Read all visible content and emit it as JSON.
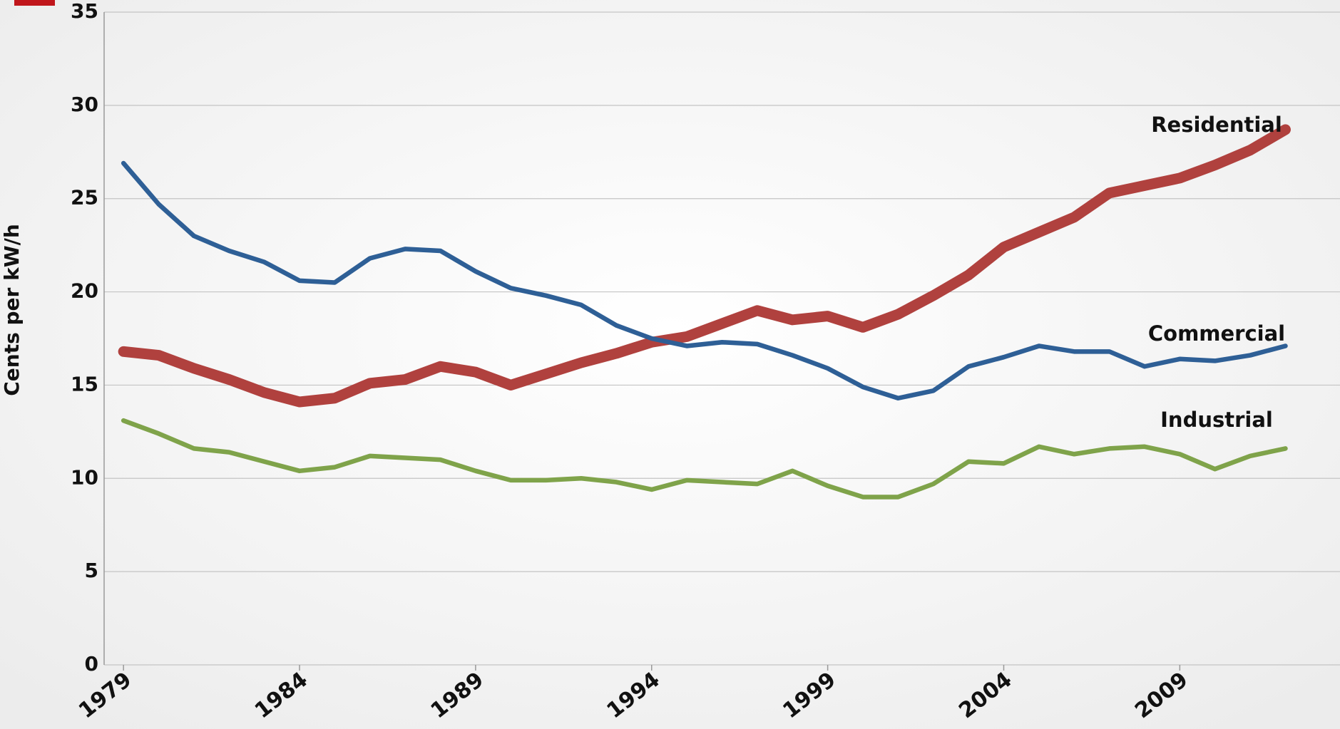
{
  "chart_data": {
    "type": "line",
    "y_label": "Cents per kW/h",
    "x": [
      1979,
      1980,
      1981,
      1982,
      1983,
      1984,
      1985,
      1986,
      1987,
      1988,
      1989,
      1990,
      1991,
      1992,
      1993,
      1994,
      1995,
      1996,
      1997,
      1998,
      1999,
      2000,
      2001,
      2002,
      2003,
      2004,
      2005,
      2006,
      2007,
      2008,
      2009,
      2010,
      2011,
      2012
    ],
    "series": [
      {
        "name": "Residential",
        "color": "#b0413e",
        "values": [
          16.8,
          16.6,
          15.9,
          15.3,
          14.6,
          14.1,
          14.3,
          15.1,
          15.3,
          16.0,
          15.7,
          15.0,
          15.6,
          16.2,
          16.7,
          17.3,
          17.6,
          18.3,
          19.0,
          18.5,
          18.7,
          18.1,
          18.8,
          19.8,
          20.9,
          22.4,
          23.2,
          24.0,
          25.3,
          25.7,
          26.1,
          26.8,
          27.6,
          28.7
        ]
      },
      {
        "name": "Commercial",
        "color": "#2e5f96",
        "values": [
          26.9,
          24.7,
          23.0,
          22.2,
          21.6,
          20.6,
          20.5,
          21.8,
          22.3,
          22.2,
          21.1,
          20.2,
          19.8,
          19.3,
          18.2,
          17.5,
          17.1,
          17.3,
          17.2,
          16.6,
          15.9,
          14.9,
          14.3,
          14.7,
          16.0,
          16.5,
          17.1,
          16.8,
          16.8,
          16.0,
          16.4,
          16.3,
          16.6,
          17.1
        ]
      },
      {
        "name": "Industrial",
        "color": "#7fa34a",
        "values": [
          13.1,
          12.4,
          11.6,
          11.4,
          10.9,
          10.4,
          10.6,
          11.2,
          11.1,
          11.0,
          10.4,
          9.9,
          9.9,
          10.0,
          9.8,
          9.4,
          9.9,
          9.8,
          9.7,
          10.4,
          9.6,
          9.0,
          9.0,
          9.7,
          10.9,
          10.8,
          11.7,
          11.3,
          11.6,
          11.7,
          11.3,
          10.5,
          11.2,
          11.6
        ]
      }
    ],
    "xlim": [
      1978.45,
      2013.55
    ],
    "xticks": [
      1979,
      1984,
      1989,
      1994,
      1999,
      2004,
      2009
    ],
    "ylim": [
      0,
      35
    ],
    "yticks": [
      0,
      5,
      10,
      15,
      20,
      25,
      30,
      35
    ],
    "grid": true
  }
}
